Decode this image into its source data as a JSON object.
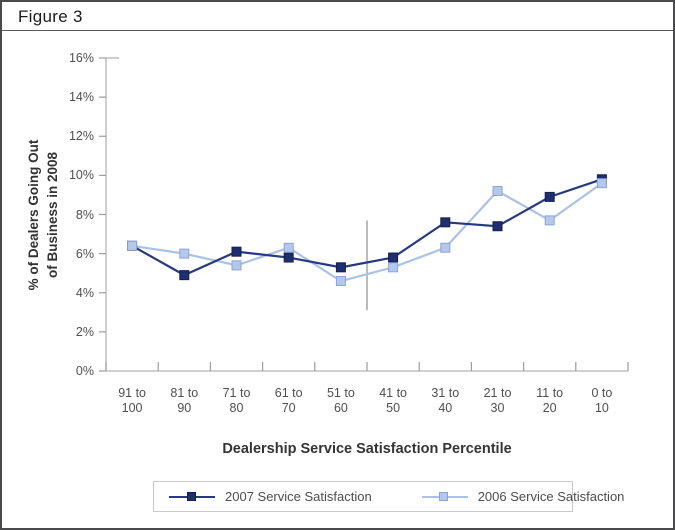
{
  "figure": {
    "title": "Figure 3"
  },
  "y_axis": {
    "title_line1": "% of Dealers Going Out",
    "title_line2": "of Business in 2008",
    "tick_suffix": "%"
  },
  "x_axis": {
    "title": "Dealership Service Satisfaction Percentile"
  },
  "colors": {
    "axis": "#b4b4b4",
    "tick": "#9d9d9f",
    "annotation_line": "#8e8e8e",
    "series_2007_line": "#263a80",
    "series_2007_marker_fill": "#1e2e70",
    "series_2007_marker_border": "#141f4e",
    "series_2006_line": "#abc2e5",
    "series_2006_marker_fill": "#b5c8ea",
    "series_2006_marker_border": "#8aa6d6"
  },
  "chart_data": {
    "type": "line",
    "title": "Figure 3",
    "xlabel": "Dealership Service Satisfaction Percentile",
    "ylabel": "% of Dealers Going Out of Business in 2008",
    "categories": [
      "91 to 100",
      "81 to 90",
      "71 to 80",
      "61 to 70",
      "51 to 60",
      "41 to 50",
      "31 to 40",
      "21 to 30",
      "11 to 20",
      "0 to 10"
    ],
    "ylim": [
      0,
      16
    ],
    "ytick_step": 2,
    "ytick_labels": [
      "0%",
      "2%",
      "4%",
      "6%",
      "8%",
      "10%",
      "12%",
      "14%",
      "16%"
    ],
    "grid": false,
    "legend_position": "bottom",
    "series": [
      {
        "name": "2007 Service Satisfaction",
        "line_color": "#263a80",
        "marker_fill": "#1e2e70",
        "marker_border": "#141f4e",
        "values": [
          6.4,
          4.9,
          6.1,
          5.8,
          5.3,
          5.8,
          7.6,
          7.4,
          8.9,
          9.8
        ]
      },
      {
        "name": "2006 Service Satisfaction",
        "line_color": "#abc2e5",
        "marker_fill": "#b5c8ea",
        "marker_border": "#8aa6d6",
        "values": [
          6.4,
          6.0,
          5.4,
          6.3,
          4.6,
          5.3,
          6.3,
          9.2,
          7.7,
          9.6
        ]
      }
    ],
    "annotation_line": {
      "at_category_boundary": 5,
      "from_pct": 3.1,
      "to_pct": 7.7
    }
  }
}
